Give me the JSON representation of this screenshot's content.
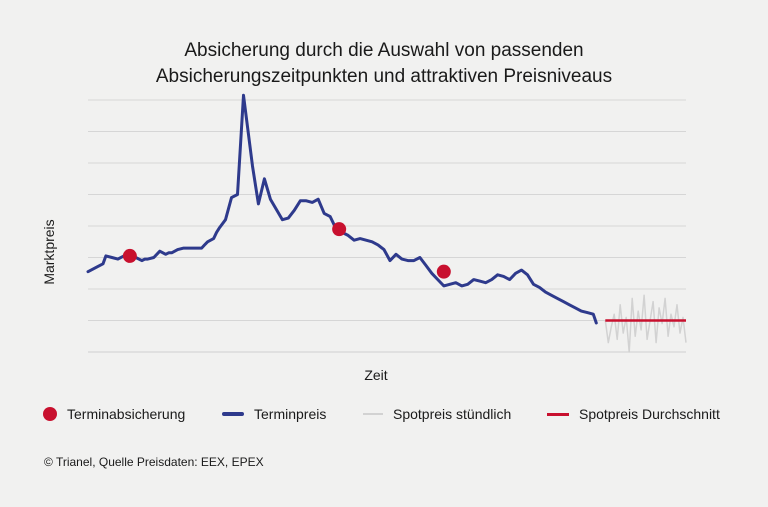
{
  "chart_data": {
    "type": "line",
    "title_lines": [
      "Absicherung durch die Auswahl von passenden",
      "Absicherungszeitpunkten und attraktiven Preisniveaus"
    ],
    "xlabel": "Zeit",
    "ylabel": "Marktpreis",
    "ylim": [
      0,
      8
    ],
    "xlim": [
      0,
      100
    ],
    "grid": true,
    "legend": {
      "position": "bottom",
      "items": [
        {
          "label": "Terminabsicherung",
          "kind": "dot",
          "color": "#c8102e"
        },
        {
          "label": "Terminpreis",
          "kind": "line",
          "color": "#2e3a8c"
        },
        {
          "label": "Spotpreis stündlich",
          "kind": "line",
          "color": "#d2d2d2"
        },
        {
          "label": "Spotpreis Durchschnitt",
          "kind": "line",
          "color": "#c8102e"
        }
      ]
    },
    "series": [
      {
        "name": "Terminpreis",
        "color": "#2e3a8c",
        "x": [
          0,
          1.5,
          2.5,
          3,
          4,
          5,
          6,
          6.5,
          7,
          8,
          9,
          9.5,
          10,
          11,
          12,
          13,
          13.5,
          14,
          15,
          16,
          17,
          18,
          19,
          19.5,
          20,
          21,
          21.5,
          22,
          23,
          24,
          25,
          26,
          26.5,
          27.5,
          28.5,
          29.5,
          30.5,
          32.5,
          33.5,
          34.5,
          35.5,
          36.5,
          37.5,
          38.5,
          39.5,
          40.5,
          41.5,
          42.5,
          43,
          43.5,
          44.5,
          45.5,
          46.5,
          47.5,
          48.5,
          49.5,
          50.5,
          51.5,
          52.5,
          53.5,
          54.5,
          55.5,
          56.5,
          57.5,
          58.5,
          59.5,
          60.5,
          61.5,
          62.5,
          63.5,
          64.5,
          65.5,
          66.5,
          67.5,
          68.5,
          69.5,
          70.5,
          71.5,
          72.5,
          73.5,
          74.5,
          75.5,
          76.5,
          77.5,
          78.5,
          79.5,
          80.5,
          81.5,
          82.5,
          83.5,
          84.5,
          85
        ],
        "values": [
          2.55,
          2.7,
          2.8,
          3.05,
          3.0,
          2.95,
          3.05,
          3.0,
          3.05,
          3.0,
          2.9,
          2.95,
          2.95,
          3.0,
          3.2,
          3.1,
          3.15,
          3.15,
          3.25,
          3.3,
          3.3,
          3.3,
          3.3,
          3.4,
          3.5,
          3.6,
          3.8,
          3.95,
          4.2,
          4.9,
          5.0,
          8.15,
          7.4,
          5.9,
          4.7,
          5.5,
          4.85,
          4.2,
          4.25,
          4.5,
          4.8,
          4.8,
          4.75,
          4.85,
          4.4,
          4.3,
          3.9,
          3.8,
          3.75,
          3.7,
          3.55,
          3.6,
          3.55,
          3.5,
          3.4,
          3.25,
          2.9,
          3.1,
          2.95,
          2.9,
          2.9,
          3.0,
          2.75,
          2.5,
          2.3,
          2.1,
          2.15,
          2.2,
          2.1,
          2.15,
          2.3,
          2.25,
          2.2,
          2.3,
          2.45,
          2.4,
          2.3,
          2.5,
          2.6,
          2.45,
          2.15,
          2.05,
          1.9,
          1.8,
          1.7,
          1.6,
          1.5,
          1.4,
          1.3,
          1.25,
          1.2,
          0.92
        ]
      },
      {
        "name": "Terminabsicherung",
        "color": "#c8102e",
        "x": [
          7,
          42,
          59.5
        ],
        "values": [
          3.05,
          3.9,
          2.55
        ]
      },
      {
        "name": "Spotpreis stündlich",
        "color": "#d2d2d2",
        "x": [
          86.5,
          87.0,
          87.5,
          88.0,
          88.5,
          89.0,
          89.5,
          90.0,
          90.5,
          91.0,
          91.5,
          92.0,
          92.5,
          93.0,
          93.5,
          94.0,
          94.5,
          95.0,
          95.5,
          96.0,
          96.5,
          97.0,
          97.5,
          98.0,
          98.5,
          99.0,
          99.5,
          100.0
        ],
        "values": [
          1.0,
          0.3,
          0.8,
          1.2,
          0.4,
          1.5,
          0.6,
          1.1,
          0.0,
          1.7,
          0.5,
          1.3,
          0.7,
          1.8,
          0.4,
          1.0,
          1.6,
          0.3,
          1.4,
          0.9,
          1.7,
          0.5,
          1.2,
          0.8,
          1.5,
          0.6,
          1.1,
          0.3
        ]
      },
      {
        "name": "Spotpreis Durchschnitt",
        "color": "#c8102e",
        "x": [
          86.5,
          100
        ],
        "values": [
          1.0,
          1.0
        ]
      }
    ],
    "footer": "© Trianel, Quelle Preisdaten: EEX, EPEX"
  }
}
